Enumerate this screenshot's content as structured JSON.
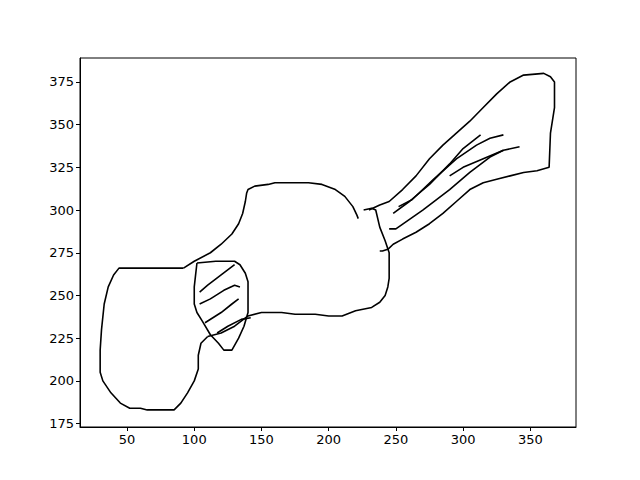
{
  "chart_data": {
    "type": "line",
    "color": "#000000",
    "grid": false,
    "xlim": [
      15,
      384
    ],
    "xticks": [
      50,
      100,
      150,
      200,
      250,
      300,
      350
    ],
    "ylim": [
      173,
      389
    ],
    "yticks": [
      175,
      200,
      225,
      250,
      275,
      300,
      325,
      350,
      375
    ],
    "series": [
      {
        "color": "#000000",
        "x": [
          92,
          88,
          80,
          70,
          60,
          50,
          44,
          40,
          36,
          33,
          31,
          30,
          30,
          32,
          38,
          45,
          52,
          60,
          65,
          85,
          90,
          95,
          100,
          103,
          103,
          105,
          110
        ],
        "values": [
          266,
          266,
          266,
          266,
          266,
          266,
          266,
          262,
          255,
          245,
          230,
          218,
          205,
          200,
          193,
          187,
          184,
          184,
          183,
          183,
          187,
          193,
          200,
          207,
          215,
          222,
          226
        ]
      },
      {
        "color": "#000000",
        "x": [
          92,
          100,
          112,
          120,
          128,
          133,
          136,
          138,
          139,
          140,
          145,
          155,
          160,
          185,
          195,
          205,
          212,
          218,
          221,
          222
        ],
        "values": [
          266,
          270,
          275,
          280,
          286,
          292,
          298,
          305,
          310,
          312,
          314,
          315,
          316,
          316,
          315,
          312,
          308,
          302,
          297,
          295
        ]
      },
      {
        "color": "#000000",
        "x": [
          110,
          120,
          130,
          140,
          150,
          165,
          175,
          190,
          200,
          210,
          220,
          232,
          238,
          242,
          244,
          245,
          245,
          242,
          238,
          235,
          232,
          226
        ],
        "values": [
          226,
          228,
          232,
          238,
          240,
          240,
          239,
          239,
          238,
          238,
          241,
          243,
          246,
          250,
          255,
          260,
          275,
          282,
          290,
          300,
          301,
          300
        ]
      },
      {
        "color": "#000000",
        "x": [
          102,
          116,
          130,
          134,
          138,
          140,
          140,
          137,
          133,
          128,
          122,
          118,
          112,
          106,
          102,
          100,
          100,
          101,
          102
        ],
        "values": [
          269,
          270,
          270,
          268,
          263,
          258,
          240,
          232,
          225,
          218,
          218,
          222,
          227,
          235,
          240,
          245,
          255,
          262,
          269
        ]
      },
      {
        "color": "#000000",
        "x": [
          104,
          110,
          120,
          130
        ],
        "values": [
          252,
          256,
          262,
          268
        ]
      },
      {
        "color": "#000000",
        "x": [
          104,
          112,
          122,
          130,
          134
        ],
        "values": [
          245,
          248,
          253,
          256,
          255
        ]
      },
      {
        "color": "#000000",
        "x": [
          108,
          120,
          128,
          133
        ],
        "values": [
          234,
          240,
          245,
          248
        ]
      },
      {
        "color": "#000000",
        "x": [
          117,
          125,
          135,
          142
        ],
        "values": [
          228,
          232,
          236,
          237
        ]
      },
      {
        "color": "#000000",
        "x": [
          230,
          238,
          245,
          255,
          265,
          275,
          285,
          295,
          305,
          315,
          325,
          335,
          345,
          360,
          365,
          368,
          368,
          366,
          365,
          364,
          355,
          345,
          335,
          325,
          315,
          305,
          295,
          285,
          275,
          265,
          255,
          248,
          244,
          240,
          238
        ],
        "values": [
          300,
          303,
          305,
          312,
          320,
          330,
          338,
          345,
          352,
          360,
          368,
          375,
          379,
          380,
          378,
          375,
          360,
          350,
          345,
          325,
          323,
          322,
          320,
          318,
          316,
          312,
          305,
          298,
          292,
          287,
          283,
          280,
          277,
          276,
          276
        ]
      },
      {
        "color": "#000000",
        "x": [
          248,
          260,
          275,
          290,
          300,
          313
        ],
        "values": [
          298,
          305,
          315,
          327,
          336,
          344
        ]
      },
      {
        "color": "#000000",
        "x": [
          252,
          262,
          278,
          295,
          310,
          320,
          330
        ],
        "values": [
          302,
          306,
          318,
          330,
          338,
          342,
          344
        ]
      },
      {
        "color": "#000000",
        "x": [
          245,
          250,
          270,
          290,
          305,
          320,
          330
        ],
        "values": [
          289,
          289,
          300,
          312,
          322,
          331,
          335
        ]
      },
      {
        "color": "#000000",
        "x": [
          290,
          300,
          315,
          330,
          342
        ],
        "values": [
          320,
          325,
          330,
          335,
          337
        ]
      }
    ]
  }
}
